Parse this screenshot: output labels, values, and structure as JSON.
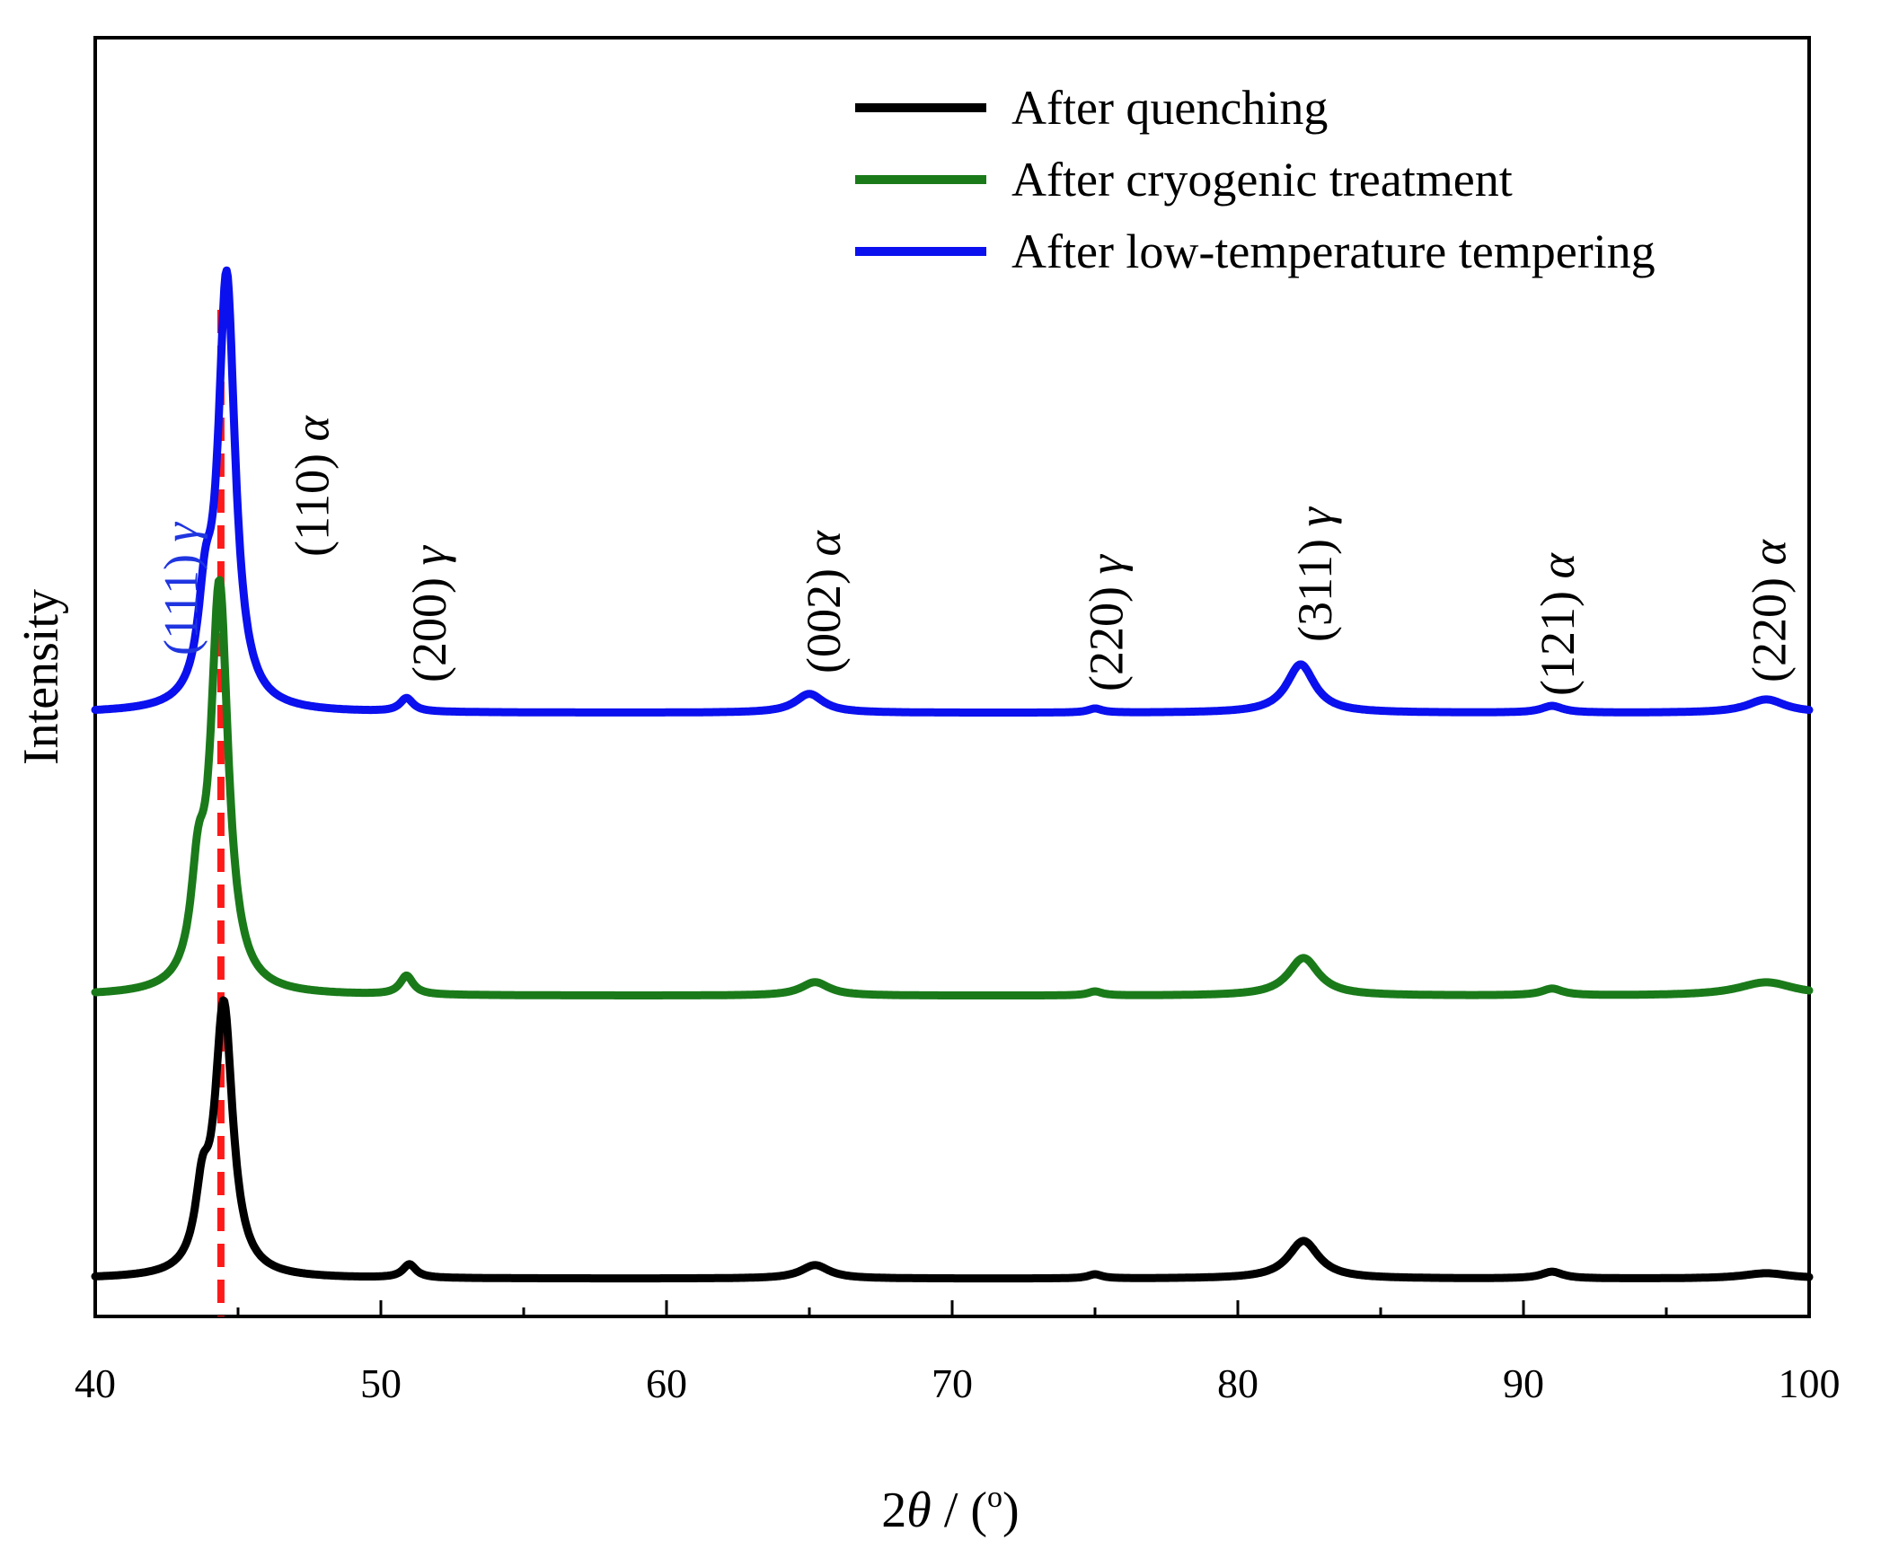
{
  "chart_data": {
    "type": "line",
    "xlabel_prefix": "2",
    "xlabel_symbol": "θ",
    "xlabel_suffix_open": " / (",
    "xlabel_degree": "o",
    "xlabel_suffix_close": ")",
    "ylabel": "Intensity",
    "xlim": [
      40,
      100
    ],
    "x_ticks": [
      "40",
      "50",
      "60",
      "70",
      "80",
      "90",
      "100"
    ],
    "y_ticks_shown": false,
    "reference_line": {
      "x": 44.4,
      "color": "#ff1a1a",
      "style": "dashed"
    },
    "legend": {
      "position": "top-right",
      "entries": [
        {
          "label": "After quenching",
          "color": "#000000"
        },
        {
          "label": "After cryogenic treatment",
          "color": "#1a7a1a"
        },
        {
          "label": "After low-temperature tempering",
          "color": "#0a10ee"
        }
      ]
    },
    "series": [
      {
        "name": "After quenching",
        "color": "#000000",
        "offset": 0,
        "shoulder_height": 0.45,
        "peaks": [
          {
            "x": 44.5,
            "h": 1.0,
            "w": 0.38
          },
          {
            "x": 51.0,
            "h": 0.05,
            "w": 0.28
          },
          {
            "x": 65.2,
            "h": 0.05,
            "w": 0.6
          },
          {
            "x": 75.0,
            "h": 0.015,
            "w": 0.3
          },
          {
            "x": 82.3,
            "h": 0.14,
            "w": 0.65
          },
          {
            "x": 91.0,
            "h": 0.025,
            "w": 0.45
          },
          {
            "x": 98.5,
            "h": 0.02,
            "w": 1.0
          }
        ]
      },
      {
        "name": "After cryogenic treatment",
        "color": "#1a7a1a",
        "offset": 1.05,
        "shoulder_height": 0.4,
        "peaks": [
          {
            "x": 44.35,
            "h": 1.5,
            "w": 0.37
          },
          {
            "x": 50.9,
            "h": 0.07,
            "w": 0.28
          },
          {
            "x": 65.2,
            "h": 0.05,
            "w": 0.6
          },
          {
            "x": 75.0,
            "h": 0.015,
            "w": 0.3
          },
          {
            "x": 82.3,
            "h": 0.14,
            "w": 0.65
          },
          {
            "x": 91.0,
            "h": 0.025,
            "w": 0.45
          },
          {
            "x": 98.5,
            "h": 0.05,
            "w": 1.2
          }
        ]
      },
      {
        "name": "After low-temperature tempering",
        "color": "#0a10ee",
        "offset": 2.1,
        "shoulder_height": 0.35,
        "peaks": [
          {
            "x": 44.6,
            "h": 1.6,
            "w": 0.36
          },
          {
            "x": 50.9,
            "h": 0.05,
            "w": 0.28
          },
          {
            "x": 65.0,
            "h": 0.07,
            "w": 0.6
          },
          {
            "x": 75.0,
            "h": 0.015,
            "w": 0.3
          },
          {
            "x": 82.2,
            "h": 0.18,
            "w": 0.6
          },
          {
            "x": 91.0,
            "h": 0.025,
            "w": 0.45
          },
          {
            "x": 98.5,
            "h": 0.05,
            "w": 0.8
          }
        ]
      }
    ],
    "peak_labels": [
      {
        "text": "(111)",
        "phase": "γ",
        "x": 43.0,
        "color": "#1f35e0"
      },
      {
        "text": "(110)",
        "phase": "α",
        "x": 47.6,
        "color": "#000000"
      },
      {
        "text": "(200)",
        "phase": "γ",
        "x": 51.7,
        "color": "#000000"
      },
      {
        "text": "(002)",
        "phase": "α",
        "x": 65.5,
        "color": "#000000"
      },
      {
        "text": "(220)",
        "phase": "γ",
        "x": 75.4,
        "color": "#000000"
      },
      {
        "text": "(311)",
        "phase": "γ",
        "x": 82.7,
        "color": "#000000"
      },
      {
        "text": "(121)",
        "phase": "α",
        "x": 91.2,
        "color": "#000000"
      },
      {
        "text": "(220)",
        "phase": "α",
        "x": 98.6,
        "color": "#000000"
      }
    ]
  }
}
